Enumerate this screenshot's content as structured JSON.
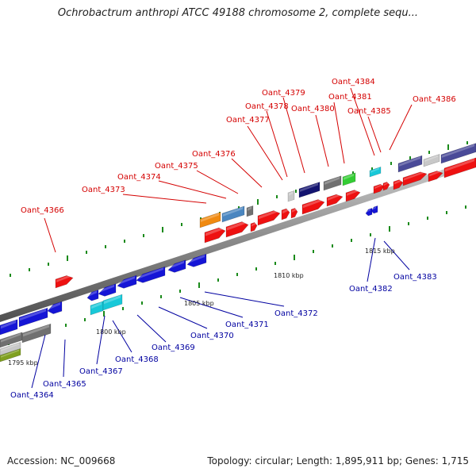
{
  "title": "Ochrobactrum anthropi ATCC 49188 chromosome 2, complete sequ...",
  "footer": {
    "accession": "Accession: NC_009668",
    "info": "Topology: circular; Length: 1,895,911 bp; Genes: 1,715"
  },
  "colors": {
    "top_label": "#d40000",
    "bottom_label": "#0000a0",
    "red": "#ee1111",
    "blue": "#1515d6",
    "navy": "#141470",
    "cyan": "#18c8d8",
    "steelblue": "#4a86c0",
    "orange": "#f08a10",
    "gray": "#707070",
    "lightgray": "#c8c8c8",
    "green": "#33cc33",
    "olive": "#80a020",
    "slateblue": "#4a4a98"
  },
  "scale_labels": [
    "1795 kbp",
    "1800 kbp",
    "1805 kbp",
    "1810 kbp",
    "1815 kbp"
  ],
  "top_labels": [
    "Oant_4366",
    "Oant_4373",
    "Oant_4374",
    "Oant_4375",
    "Oant_4376",
    "Oant_4377",
    "Oant_4378",
    "Oant_4379",
    "Oant_4380",
    "Oant_4381",
    "Oant_4384",
    "Oant_4385",
    "Oant_4386"
  ],
  "bottom_labels": [
    "Oant_4364",
    "Oant_4365",
    "Oant_4367",
    "Oant_4368",
    "Oant_4369",
    "Oant_4370",
    "Oant_4371",
    "Oant_4372",
    "Oant_4382",
    "Oant_4383"
  ]
}
